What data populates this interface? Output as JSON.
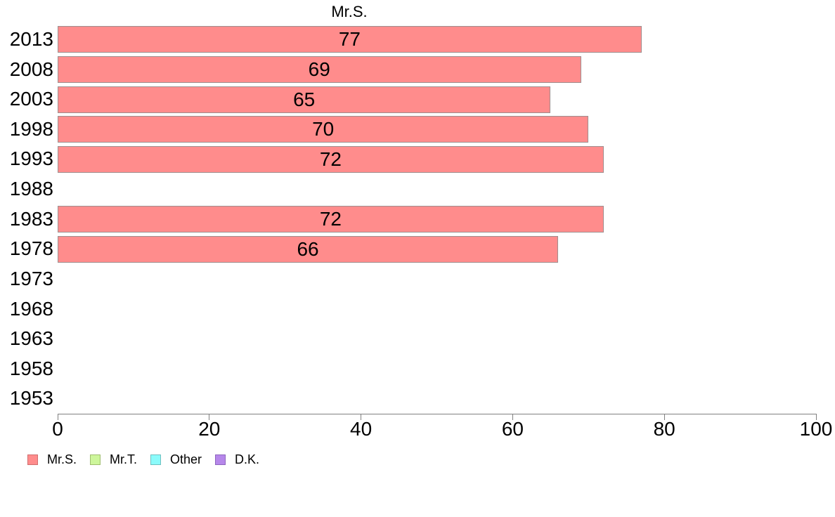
{
  "chart_data": {
    "type": "bar",
    "orientation": "horizontal",
    "title": "Mr.S.",
    "categories": [
      "2013",
      "2008",
      "2003",
      "1998",
      "1993",
      "1988",
      "1983",
      "1978",
      "1973",
      "1968",
      "1963",
      "1958",
      "1953"
    ],
    "series": [
      {
        "name": "Mr.S.",
        "fill": "#FF8C8C",
        "border": "#9F8F8F",
        "values": [
          77,
          69,
          65,
          70,
          72,
          null,
          72,
          66,
          null,
          null,
          null,
          null,
          null
        ]
      }
    ],
    "bar_value_labels": [
      77,
      69,
      65,
      70,
      72,
      null,
      72,
      66,
      null,
      null,
      null,
      null,
      null
    ],
    "xlim": [
      0,
      100
    ],
    "x_ticks": [
      0,
      20,
      40,
      60,
      80,
      100
    ],
    "grid": false,
    "legend_position": "bottom",
    "legend": [
      {
        "label": "Mr.S.",
        "fill": "#FF8C8C",
        "border": "#D06F6F"
      },
      {
        "label": "Mr.T.",
        "fill": "#CDF69B",
        "border": "#9FBE6E"
      },
      {
        "label": "Other",
        "fill": "#8BFBFB",
        "border": "#6FBFBF"
      },
      {
        "label": "D.K.",
        "fill": "#B687EA",
        "border": "#8E66BE"
      }
    ],
    "axis_color": "#808080",
    "text_color": "#000000"
  }
}
